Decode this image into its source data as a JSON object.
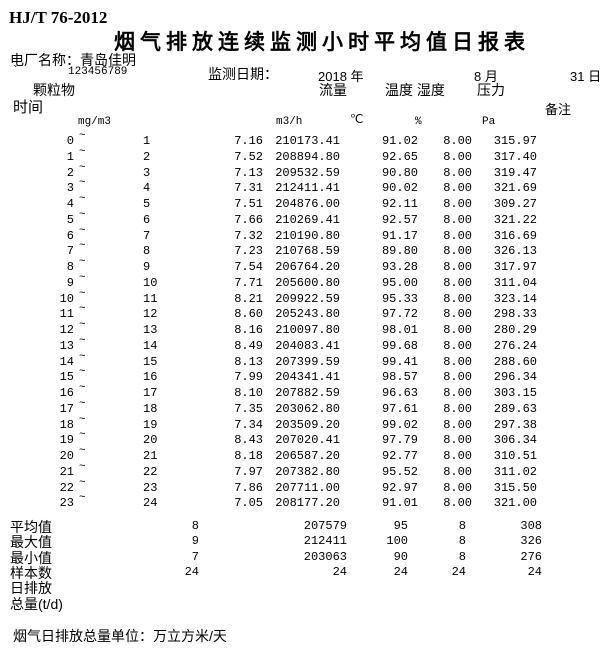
{
  "report": {
    "standard": "HJ/T 76-2012",
    "title": "烟气排放连续监测小时平均值日报表",
    "plant_line": "电厂名称：青岛佳明",
    "stray_mark": "`",
    "plant_code": "123456789",
    "date_label": "监测日期：",
    "date_year": "2018 年",
    "date_month": "8 月",
    "date_day": "31 日"
  },
  "headers": {
    "time": "时间",
    "pm": "颗粒物",
    "flow": "流量",
    "temp_hum": "温度 湿度",
    "pressure": "压力",
    "remark": "备注"
  },
  "units": {
    "pm": "mg/m3",
    "flow": "m3/h",
    "temp": "℃",
    "hum": "%",
    "press": "Pa"
  },
  "tilde": "~",
  "rows": [
    [
      "0",
      "1",
      "7.16",
      "210173.41",
      "91.02",
      "8.00",
      "315.97"
    ],
    [
      "1",
      "2",
      "7.52",
      "208894.80",
      "92.65",
      "8.00",
      "317.40"
    ],
    [
      "2",
      "3",
      "7.13",
      "209532.59",
      "90.80",
      "8.00",
      "319.47"
    ],
    [
      "3",
      "4",
      "7.31",
      "212411.41",
      "90.02",
      "8.00",
      "321.69"
    ],
    [
      "4",
      "5",
      "7.51",
      "204876.00",
      "92.11",
      "8.00",
      "309.27"
    ],
    [
      "5",
      "6",
      "7.66",
      "210269.41",
      "92.57",
      "8.00",
      "321.22"
    ],
    [
      "6",
      "7",
      "7.32",
      "210190.80",
      "91.17",
      "8.00",
      "316.69"
    ],
    [
      "7",
      "8",
      "7.23",
      "210768.59",
      "89.80",
      "8.00",
      "326.13"
    ],
    [
      "8",
      "9",
      "7.54",
      "206764.20",
      "93.28",
      "8.00",
      "317.97"
    ],
    [
      "9",
      "10",
      "7.71",
      "205600.80",
      "95.00",
      "8.00",
      "311.04"
    ],
    [
      "10",
      "11",
      "8.21",
      "209922.59",
      "95.33",
      "8.00",
      "323.14"
    ],
    [
      "11",
      "12",
      "8.60",
      "205243.80",
      "97.72",
      "8.00",
      "298.33"
    ],
    [
      "12",
      "13",
      "8.16",
      "210097.80",
      "98.01",
      "8.00",
      "280.29"
    ],
    [
      "13",
      "14",
      "8.49",
      "204083.41",
      "99.68",
      "8.00",
      "276.24"
    ],
    [
      "14",
      "15",
      "8.13",
      "207399.59",
      "99.41",
      "8.00",
      "288.60"
    ],
    [
      "15",
      "16",
      "7.99",
      "204341.41",
      "98.57",
      "8.00",
      "296.34"
    ],
    [
      "16",
      "17",
      "8.10",
      "207882.59",
      "96.63",
      "8.00",
      "303.15"
    ],
    [
      "17",
      "18",
      "7.35",
      "203062.80",
      "97.61",
      "8.00",
      "289.63"
    ],
    [
      "18",
      "19",
      "7.34",
      "203509.20",
      "99.02",
      "8.00",
      "297.38"
    ],
    [
      "19",
      "20",
      "8.43",
      "207020.41",
      "97.79",
      "8.00",
      "306.34"
    ],
    [
      "20",
      "21",
      "8.18",
      "206587.20",
      "92.77",
      "8.00",
      "310.51"
    ],
    [
      "21",
      "22",
      "7.97",
      "207382.80",
      "95.52",
      "8.00",
      "311.02"
    ],
    [
      "22",
      "23",
      "7.86",
      "207711.00",
      "92.97",
      "8.00",
      "315.50"
    ],
    [
      "23",
      "24",
      "7.05",
      "208177.20",
      "91.01",
      "8.00",
      "321.00"
    ]
  ],
  "summary": [
    {
      "label": "平均值",
      "values": [
        "8",
        "207579",
        "95",
        "8",
        "308"
      ]
    },
    {
      "label": "最大值",
      "values": [
        "9",
        "212411",
        "100",
        "8",
        "326"
      ]
    },
    {
      "label": "最小值",
      "values": [
        "7",
        "203063",
        "90",
        "8",
        "276"
      ]
    },
    {
      "label": "样本数",
      "values": [
        "24",
        "24",
        "24",
        "24",
        "24"
      ]
    }
  ],
  "daily_total_line1": "日排放",
  "daily_total_line2": "总量(t/d)",
  "footnote": "烟气日排放总量单位：万立方米/天"
}
